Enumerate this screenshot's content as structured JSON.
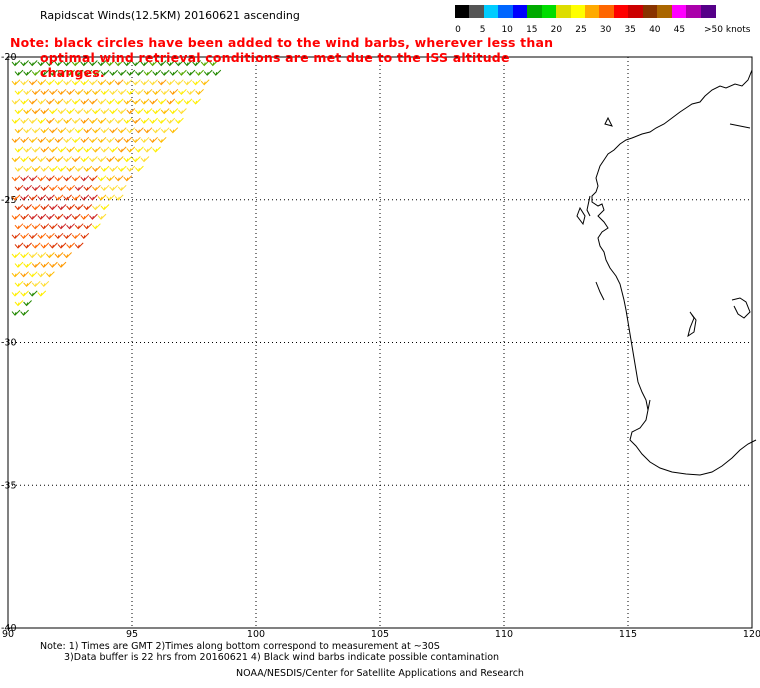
{
  "header": {
    "title": "Rapidscat Winds(12.5KM) 20160621 ascending"
  },
  "note": {
    "line1": "Note: black circles have been added to the wind barbs, wherever less than",
    "line2": "optimal wind retrieval conditions are met due to the ISS altitude changes."
  },
  "legend": {
    "colors": [
      "#000000",
      "#555555",
      "#00ccff",
      "#0066ff",
      "#0000ff",
      "#00aa00",
      "#00dd00",
      "#dddd00",
      "#ffff00",
      "#ffaa00",
      "#ff6600",
      "#ff0000",
      "#cc0000",
      "#883300",
      "#aa6600",
      "#ff00ff",
      "#aa00aa",
      "#550088"
    ],
    "labels": [
      "0",
      "5",
      "10",
      "15",
      "20",
      "25",
      "30",
      "35",
      "40",
      "45",
      ">50 knots"
    ]
  },
  "axes": {
    "lat_labels": [
      "-20",
      "-25",
      "-30",
      "-35",
      "-40"
    ],
    "lon_labels": [
      "90",
      "95",
      "100",
      "105",
      "110",
      "115",
      "120"
    ]
  },
  "footer": {
    "line1": "Note: 1) Times are GMT 2)Times along bottom correspond to measurement at ~30S",
    "line2": "3)Data buffer is 22 hrs from 20160621 4) Black wind barbs indicate possible contamination",
    "credit": "NOAA/NESDIS/Center for Satellite Applications and Research"
  }
}
